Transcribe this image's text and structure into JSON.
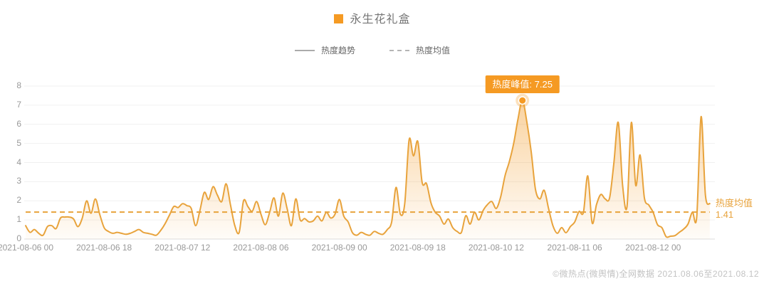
{
  "title": {
    "text": "永生花礼盒"
  },
  "legend": {
    "items": [
      {
        "label": "热度趋势",
        "glyph": "solid-line"
      },
      {
        "label": "热度均值",
        "glyph": "dashed-line"
      }
    ]
  },
  "annotations": {
    "peak_label": "热度峰值: 7.25",
    "mean_label": "热度均值",
    "mean_value": "1.41"
  },
  "footer": {
    "text": "©微热点(微舆情)全网数据 2021.08.06至2021.08.12"
  },
  "colors": {
    "line": "#E8A33C",
    "accent": "#F59A23",
    "fill_top": "rgba(243,158,46,0.50)",
    "fill_bottom": "rgba(243,158,46,0.03)",
    "grid": "#f0f0f0",
    "axis": "#dcdcdc",
    "tick_text": "#999999",
    "marker_halo": "rgba(245,154,35,0.30)"
  },
  "chart_data": {
    "type": "area",
    "title": "永生花礼盒",
    "xlabel": "",
    "ylabel": "",
    "x_granularity_hours": 1,
    "x_tick_labels": [
      "2021-08-06 00",
      "2021-08-06 18",
      "2021-08-07 12",
      "2021-08-08 06",
      "2021-08-09 00",
      "2021-08-09 18",
      "2021-08-10 12",
      "2021-08-11 06",
      "2021-08-12 00"
    ],
    "x_tick_indices": [
      0,
      18,
      36,
      54,
      72,
      90,
      108,
      126,
      144
    ],
    "y_ticks": [
      0,
      1,
      2,
      3,
      4,
      5,
      6,
      7,
      8
    ],
    "ylim": [
      0,
      8
    ],
    "grid": true,
    "legend_position": "top-center",
    "series": [
      {
        "name": "热度趋势",
        "type": "smooth-line-area",
        "values": [
          0.7,
          0.35,
          0.5,
          0.3,
          0.2,
          0.65,
          0.7,
          0.55,
          1.1,
          1.15,
          1.15,
          1.05,
          0.65,
          1.1,
          2.0,
          1.35,
          2.1,
          1.3,
          0.6,
          0.4,
          0.3,
          0.35,
          0.3,
          0.25,
          0.3,
          0.4,
          0.5,
          0.35,
          0.3,
          0.25,
          0.2,
          0.45,
          0.8,
          1.25,
          1.7,
          1.65,
          1.85,
          1.75,
          1.6,
          0.7,
          1.5,
          2.44,
          2.07,
          2.74,
          2.3,
          1.96,
          2.89,
          1.8,
          0.7,
          0.35,
          2.0,
          1.7,
          1.45,
          1.96,
          1.3,
          0.75,
          1.4,
          2.15,
          1.2,
          2.4,
          1.6,
          0.7,
          2.1,
          1.0,
          1.07,
          0.9,
          0.95,
          1.2,
          0.95,
          1.4,
          1.1,
          1.3,
          2.07,
          1.2,
          0.9,
          0.33,
          0.2,
          0.35,
          0.25,
          0.2,
          0.4,
          0.3,
          0.25,
          0.5,
          0.9,
          2.7,
          1.3,
          1.85,
          5.2,
          4.35,
          5.1,
          2.95,
          2.9,
          1.9,
          1.4,
          1.2,
          0.78,
          1.05,
          0.6,
          0.4,
          0.35,
          1.22,
          0.78,
          1.4,
          1.0,
          1.5,
          1.81,
          1.96,
          1.6,
          2.2,
          3.3,
          4.05,
          5.0,
          6.3,
          7.25,
          6.15,
          4.6,
          2.6,
          2.1,
          2.55,
          1.6,
          0.7,
          0.3,
          0.6,
          0.33,
          0.65,
          0.89,
          1.44,
          1.4,
          3.3,
          0.85,
          1.8,
          2.33,
          2.1,
          2.15,
          4.0,
          6.1,
          2.81,
          1.7,
          6.1,
          2.81,
          4.4,
          2.15,
          1.78,
          1.4,
          0.75,
          0.6,
          0.12,
          0.15,
          0.18,
          0.35,
          0.52,
          0.78,
          1.41,
          1.15,
          6.4,
          2.3,
          1.85
        ]
      },
      {
        "name": "热度均值",
        "type": "horizontal-dashed-line",
        "value": 1.41
      }
    ],
    "peak": {
      "index": 114,
      "value": 7.25,
      "label": "热度峰值: 7.25"
    },
    "mean_value": 1.41
  }
}
